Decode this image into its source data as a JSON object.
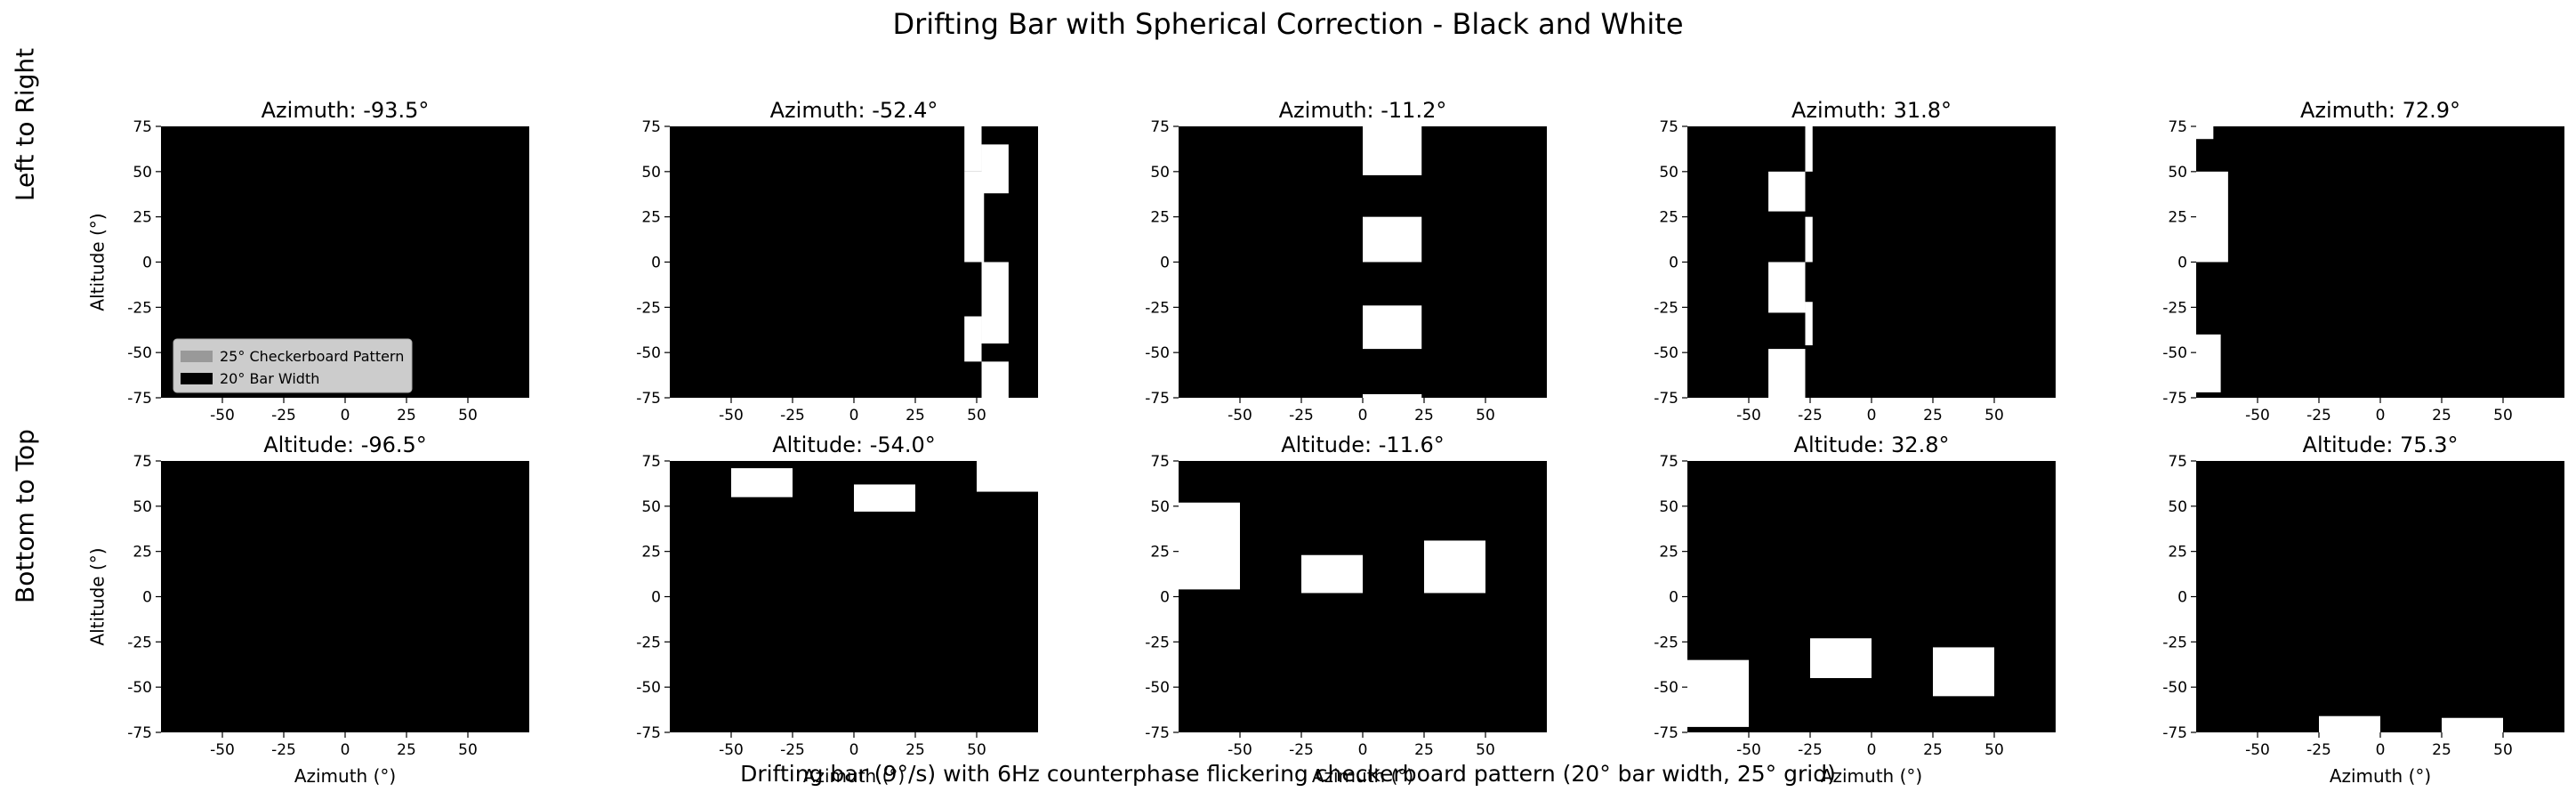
{
  "figure": {
    "title": "Drifting Bar with Spherical Correction - Black and White",
    "caption": "Drifting bar (9°/s) with 6Hz counterphase flickering checkerboard pattern (20° bar width, 25° grid)"
  },
  "row_labels": [
    "Left to Right",
    "Bottom to Top"
  ],
  "chart_data": {
    "type": "heatmap",
    "panel_xlim": [
      -75,
      75
    ],
    "panel_ylim": [
      -75,
      75
    ],
    "x_ticks": [
      -50,
      -25,
      0,
      25,
      50
    ],
    "y_ticks": [
      75,
      50,
      25,
      0,
      -25,
      -50,
      -75
    ],
    "axis_labels": {
      "altitude": "Altitude (°)",
      "azimuth": "Azimuth (°)"
    },
    "grid": false,
    "legend": {
      "placement": "lower-left",
      "entries": [
        {
          "label": "25° Checkerboard Pattern",
          "color": "#999999"
        },
        {
          "label": "20° Bar Width",
          "color": "#000000"
        }
      ]
    },
    "colors": {
      "background": "#000000",
      "stimulus": "#ffffff"
    },
    "panels": [
      {
        "title": "Azimuth: -93.5°",
        "direction": "left-to-right",
        "position_deg": -93.5,
        "ylabel": true,
        "xlabel": false,
        "legend": true,
        "visible_patches": []
      },
      {
        "title": "Azimuth: -52.4°",
        "direction": "left-to-right",
        "position_deg": -52.4,
        "ylabel": false,
        "xlabel": false,
        "legend": false,
        "visible_patches": [
          [
            45,
            52,
            75,
            50
          ],
          [
            52,
            63,
            65,
            38
          ],
          [
            45,
            53,
            50,
            0
          ],
          [
            52,
            63,
            0,
            -45
          ],
          [
            45,
            52,
            -30,
            -55
          ],
          [
            52,
            63,
            -55,
            -75
          ]
        ]
      },
      {
        "title": "Azimuth: -11.2°",
        "direction": "left-to-right",
        "position_deg": -11.2,
        "ylabel": false,
        "xlabel": false,
        "legend": false,
        "visible_patches": [
          [
            0,
            24,
            75,
            48
          ],
          [
            0,
            24,
            25,
            0
          ],
          [
            0,
            24,
            -24,
            -48
          ],
          [
            0,
            24,
            -73,
            -75
          ]
        ]
      },
      {
        "title": "Azimuth: 31.8°",
        "direction": "left-to-right",
        "position_deg": 31.8,
        "ylabel": false,
        "xlabel": false,
        "legend": false,
        "visible_patches": [
          [
            -27,
            -24,
            75,
            50
          ],
          [
            -42,
            -27,
            50,
            28
          ],
          [
            -27,
            -24,
            25,
            0
          ],
          [
            -42,
            -27,
            0,
            -28
          ],
          [
            -27,
            -24,
            -22,
            -46
          ],
          [
            -42,
            -27,
            -48,
            -75
          ]
        ]
      },
      {
        "title": "Azimuth: 72.9°",
        "direction": "left-to-right",
        "position_deg": 72.9,
        "ylabel": false,
        "xlabel": false,
        "legend": false,
        "visible_patches": [
          [
            -75,
            -68,
            75,
            68
          ],
          [
            -75,
            -62,
            50,
            0
          ],
          [
            -75,
            -65,
            -40,
            -72
          ]
        ]
      },
      {
        "title": "Altitude: -96.5°",
        "direction": "bottom-to-top",
        "position_deg": -96.5,
        "ylabel": true,
        "xlabel": true,
        "legend": false,
        "visible_patches": []
      },
      {
        "title": "Altitude: -54.0°",
        "direction": "bottom-to-top",
        "position_deg": -54.0,
        "ylabel": false,
        "xlabel": true,
        "legend": false,
        "visible_patches": [
          [
            -50,
            -25,
            71,
            55
          ],
          [
            0,
            25,
            62,
            47
          ],
          [
            50,
            75,
            75,
            58
          ]
        ]
      },
      {
        "title": "Altitude: -11.6°",
        "direction": "bottom-to-top",
        "position_deg": -11.6,
        "ylabel": false,
        "xlabel": true,
        "legend": false,
        "visible_patches": [
          [
            -75,
            -50,
            52,
            4
          ],
          [
            -25,
            0,
            23,
            2
          ],
          [
            25,
            50,
            31,
            2
          ]
        ]
      },
      {
        "title": "Altitude: 32.8°",
        "direction": "bottom-to-top",
        "position_deg": 32.8,
        "ylabel": false,
        "xlabel": true,
        "legend": false,
        "visible_patches": [
          [
            -75,
            -50,
            -35,
            -72
          ],
          [
            -25,
            0,
            -23,
            -45
          ],
          [
            25,
            50,
            -28,
            -55
          ]
        ]
      },
      {
        "title": "Altitude: 75.3°",
        "direction": "bottom-to-top",
        "position_deg": 75.3,
        "ylabel": false,
        "xlabel": true,
        "legend": false,
        "visible_patches": [
          [
            -25,
            0,
            -66,
            -75
          ],
          [
            25,
            50,
            -67,
            -75
          ]
        ]
      }
    ]
  }
}
